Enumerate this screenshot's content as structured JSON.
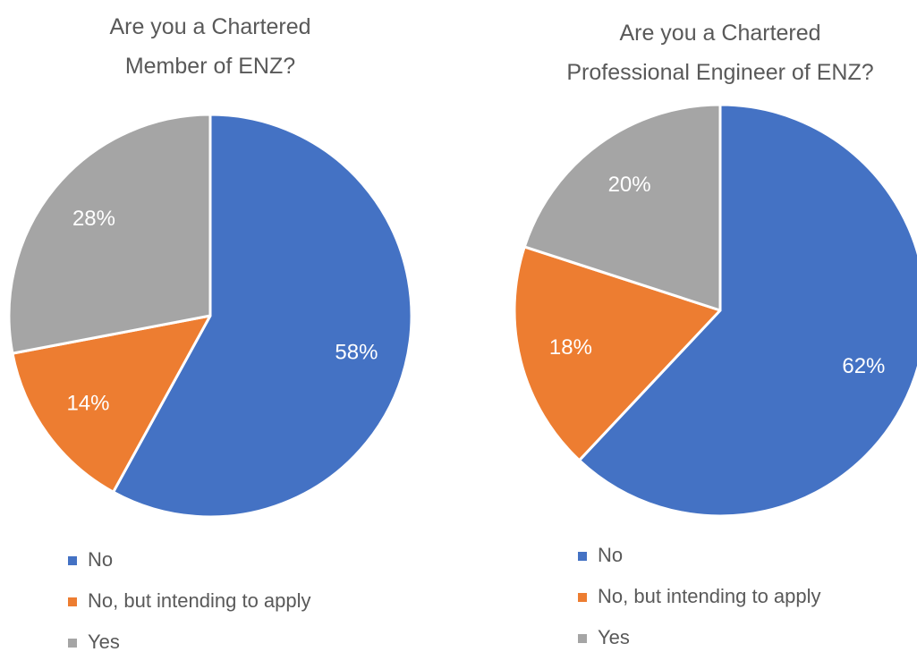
{
  "chart_data": [
    {
      "type": "pie",
      "title": "Are you a Chartered\nMember of ENZ?",
      "categories": [
        "No",
        "No, but intending to apply",
        "Yes"
      ],
      "values": [
        58,
        14,
        28
      ],
      "value_labels": [
        "58%",
        "14%",
        "28%"
      ],
      "colors": [
        "#4472c4",
        "#ed7d31",
        "#a5a5a5"
      ],
      "legend": "bottom"
    },
    {
      "type": "pie",
      "title": "Are you a Chartered\nProfessional Engineer of ENZ?",
      "categories": [
        "No",
        "No, but intending to apply",
        "Yes"
      ],
      "values": [
        62,
        18,
        20
      ],
      "value_labels": [
        "62%",
        "18%",
        "20%"
      ],
      "colors": [
        "#4472c4",
        "#ed7d31",
        "#a5a5a5"
      ],
      "legend": "bottom"
    }
  ]
}
